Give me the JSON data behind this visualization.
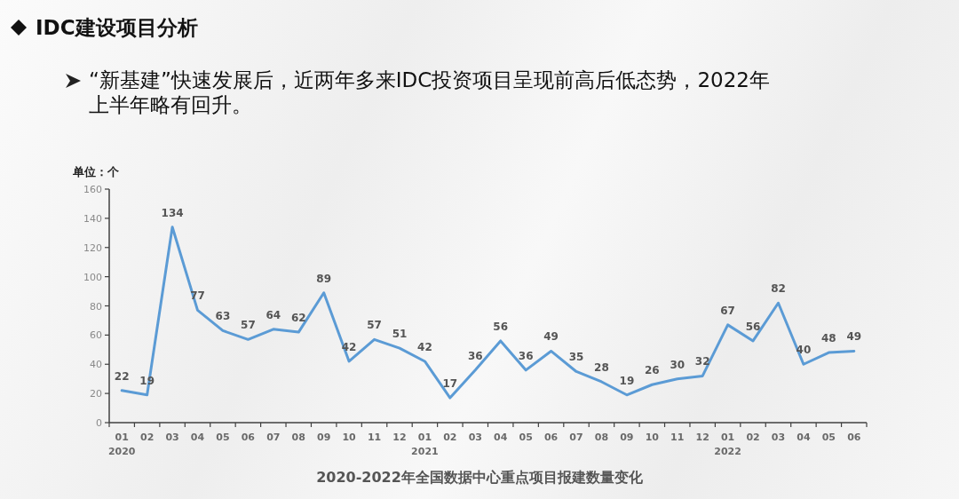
{
  "chart_data": {
    "type": "line",
    "title": "IDC建设项目分析",
    "subtitle": "“新基建”快速发展后，近两年多来IDC投资项目呈现前高后低态势，2022年上半年略有回升。",
    "ylabel": "单位：个",
    "annotations": [
      "2020-2022年全国数据中心重点项目报建数量变化"
    ],
    "categories": [
      "01\n2020",
      "02",
      "03",
      "04",
      "05",
      "06",
      "07",
      "08",
      "09",
      "10",
      "11",
      "12",
      "01\n2021",
      "02",
      "03",
      "04",
      "05",
      "06",
      "07",
      "08",
      "09",
      "10",
      "11",
      "12",
      "01\n2022",
      "02",
      "03",
      "04",
      "05",
      "06"
    ],
    "series": [
      {
        "color": "#5b9bd5",
        "values": [
          22,
          19,
          134,
          77,
          63,
          57,
          64,
          62,
          89,
          42,
          57,
          51,
          42,
          17,
          36,
          56,
          36,
          49,
          35,
          28,
          19,
          26,
          30,
          32,
          67,
          56,
          82,
          40,
          48,
          49
        ]
      }
    ],
    "ylim": [
      0,
      160
    ],
    "yticks": [
      0,
      20,
      40,
      60,
      80,
      100,
      120,
      140,
      160
    ],
    "marker": "none",
    "line_style": "solid",
    "data_labels": true
  }
}
